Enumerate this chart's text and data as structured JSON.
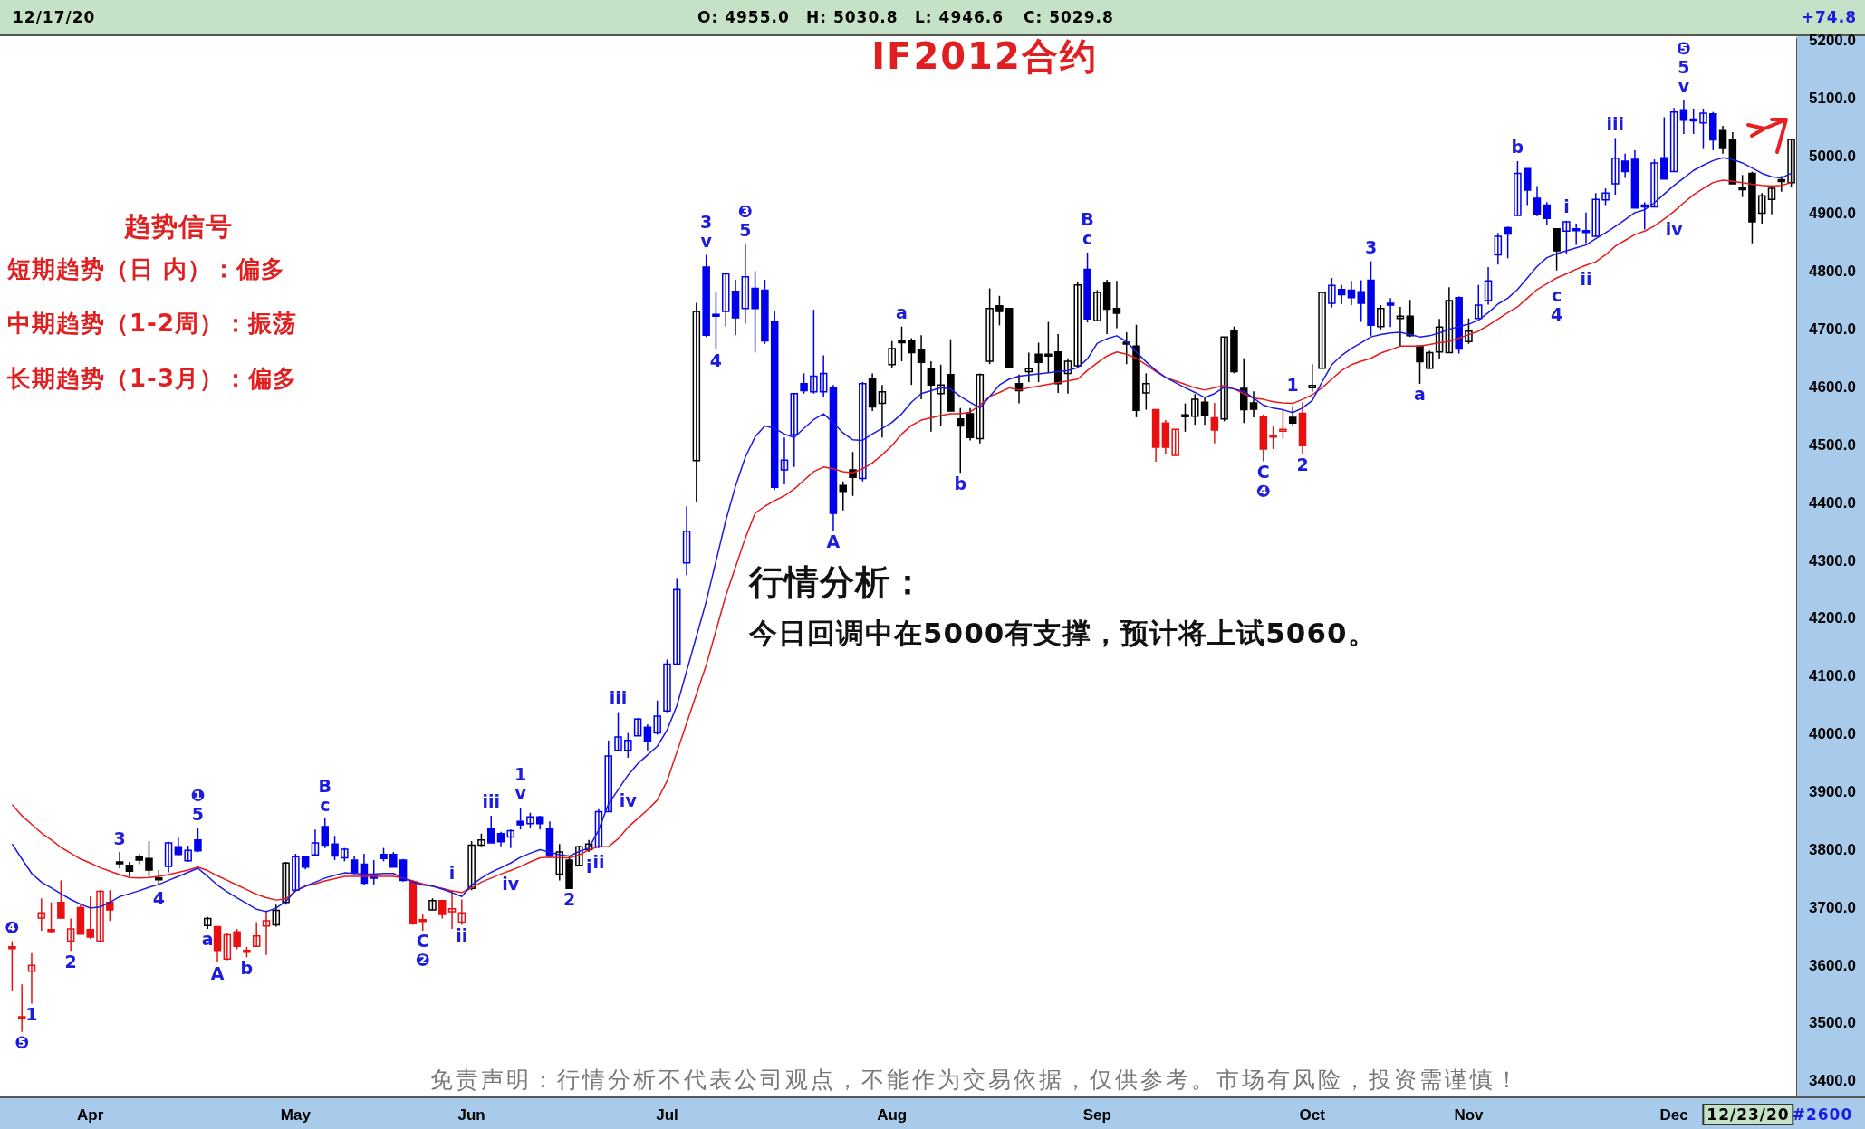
{
  "chart_data": {
    "type": "candlestick",
    "title": "IF2012合约",
    "categories": [
      null,
      null,
      null,
      null,
      null,
      null,
      null,
      null,
      "Apr",
      null,
      null,
      null,
      null,
      null,
      null,
      null,
      null,
      null,
      null,
      null,
      null,
      null,
      null,
      null,
      null,
      null,
      null,
      null,
      null,
      "May",
      null,
      null,
      null,
      null,
      null,
      null,
      null,
      null,
      null,
      null,
      null,
      null,
      null,
      null,
      null,
      null,
      null,
      "Jun",
      null,
      null,
      null,
      null,
      null,
      null,
      null,
      null,
      null,
      null,
      null,
      null,
      null,
      null,
      null,
      null,
      null,
      null,
      null,
      "Jul",
      null,
      null,
      null,
      null,
      null,
      null,
      null,
      null,
      null,
      null,
      null,
      null,
      null,
      null,
      null,
      null,
      null,
      null,
      null,
      null,
      null,
      null,
      "Aug",
      null,
      null,
      null,
      null,
      null,
      null,
      null,
      null,
      null,
      null,
      null,
      null,
      null,
      null,
      null,
      null,
      null,
      null,
      null,
      null,
      "Sep",
      null,
      null,
      null,
      null,
      null,
      null,
      null,
      null,
      null,
      null,
      null,
      null,
      null,
      null,
      null,
      null,
      null,
      null,
      null,
      null,
      null,
      "Oct",
      null,
      null,
      null,
      null,
      null,
      null,
      null,
      null,
      null,
      null,
      null,
      null,
      null,
      null,
      null,
      "Nov",
      null,
      null,
      null,
      null,
      null,
      null,
      null,
      null,
      null,
      null,
      null,
      null,
      null,
      null,
      null,
      null,
      null,
      null,
      null,
      null,
      "Dec",
      null,
      null,
      null,
      null,
      null,
      null,
      null,
      null,
      null,
      null,
      null,
      null
    ],
    "ylim": [
      3375,
      5205
    ],
    "yticks": [
      {
        "value": 3400,
        "label": "3400.0"
      },
      {
        "value": 3500,
        "label": "3500.0"
      },
      {
        "value": 3600,
        "label": "3600.0"
      },
      {
        "value": 3700,
        "label": "3700.0"
      },
      {
        "value": 3800,
        "label": "3800.0"
      },
      {
        "value": 3900,
        "label": "3900.0"
      },
      {
        "value": 4000,
        "label": "4000.0"
      },
      {
        "value": 4100,
        "label": "4100.0"
      },
      {
        "value": 4200,
        "label": "4200.0"
      },
      {
        "value": 4300,
        "label": "4300.0"
      },
      {
        "value": 4400,
        "label": "4400.0"
      },
      {
        "value": 4500,
        "label": "4500.0"
      },
      {
        "value": 4600,
        "label": "4600.0"
      },
      {
        "value": 4700,
        "label": "4700.0"
      },
      {
        "value": 4800,
        "label": "4800.0"
      },
      {
        "value": 4900,
        "label": "4900.0"
      },
      {
        "value": 5000,
        "label": "5000.0"
      },
      {
        "value": 5100,
        "label": "5100.0"
      },
      {
        "value": 5200,
        "label": "5200.0"
      }
    ],
    "annotations": [
      "12/17/20",
      "O: 4955.0",
      "H: 5030.8",
      "L: 4946.6",
      "C: 5029.8",
      "+74.8",
      "趋势信号",
      "短期趋势（日 内）：偏多",
      "中期趋势（1-2周）：振荡",
      "长期趋势（1-3月）：偏多",
      "行情分析：",
      "今日回调中在5000有支撑，预计将上试5060。",
      "免责声明：行情分析不代表公司观点，不能作为交易依据，仅供参考。市场有风险，投资需谨慎！",
      "12/23/20",
      "#2600"
    ],
    "series": [
      {
        "type": "line",
        "color": "#1a1ae6",
        "values": [
          3811,
          3785,
          3760,
          3745,
          3735,
          3725,
          3715,
          3707,
          3700,
          3702,
          3710,
          3720,
          3725,
          3730,
          3736,
          3741,
          3748,
          3755,
          3762,
          3769,
          3755,
          3740,
          3728,
          3718,
          3708,
          3698,
          3694,
          3700,
          3712,
          3730,
          3738,
          3745,
          3752,
          3757,
          3761,
          3760,
          3759,
          3759,
          3760,
          3760,
          3752,
          3745,
          3740,
          3738,
          3733,
          3727,
          3720,
          3740,
          3752,
          3762,
          3770,
          3778,
          3788,
          3795,
          3801,
          3797,
          3792,
          3790,
          3798,
          3804,
          3835,
          3880,
          3905,
          3930,
          3950,
          3965,
          3980,
          4008,
          4050,
          4110,
          4170,
          4230,
          4300,
          4370,
          4430,
          4480,
          4515,
          4534,
          4530,
          4520,
          4514,
          4530,
          4545,
          4555,
          4540,
          4522,
          4510,
          4509,
          4520,
          4530,
          4540,
          4555,
          4575,
          4590,
          4595,
          4600,
          4598,
          4585,
          4575,
          4565,
          4585,
          4605,
          4615,
          4620,
          4622,
          4624,
          4626,
          4628,
          4630,
          4635,
          4650,
          4677,
          4685,
          4690,
          4680,
          4662,
          4645,
          4630,
          4618,
          4609,
          4600,
          4592,
          4583,
          4590,
          4601,
          4598,
          4594,
          4582,
          4570,
          4565,
          4562,
          4557,
          4565,
          4578,
          4610,
          4640,
          4656,
          4668,
          4678,
          4688,
          4692,
          4695,
          4696,
          4692,
          4688,
          4690,
          4695,
          4701,
          4706,
          4710,
          4717,
          4730,
          4745,
          4755,
          4770,
          4790,
          4810,
          4825,
          4832,
          4837,
          4842,
          4847,
          4858,
          4868,
          4879,
          4891,
          4903,
          4908,
          4920,
          4935,
          4950,
          4963,
          4976,
          4985,
          4993,
          4998,
          4995,
          4989,
          4980,
          4971,
          4965,
          4963,
          4971
        ]
      },
      {
        "type": "line",
        "color": "#e61a1a",
        "values": [
          3879,
          3860,
          3845,
          3830,
          3818,
          3805,
          3795,
          3785,
          3778,
          3770,
          3764,
          3758,
          3753,
          3752,
          3753,
          3755,
          3758,
          3762,
          3766,
          3771,
          3765,
          3756,
          3748,
          3740,
          3732,
          3724,
          3718,
          3714,
          3716,
          3730,
          3738,
          3742,
          3747,
          3751,
          3755,
          3755,
          3755,
          3755,
          3755,
          3755,
          3752,
          3747,
          3742,
          3738,
          3734,
          3730,
          3727,
          3735,
          3745,
          3752,
          3759,
          3765,
          3772,
          3780,
          3787,
          3788,
          3787,
          3787,
          3792,
          3801,
          3806,
          3806,
          3820,
          3840,
          3855,
          3870,
          3887,
          3920,
          3970,
          4020,
          4070,
          4120,
          4180,
          4240,
          4290,
          4340,
          4383,
          4395,
          4405,
          4413,
          4425,
          4440,
          4455,
          4463,
          4460,
          4455,
          4453,
          4460,
          4470,
          4484,
          4500,
          4520,
          4535,
          4544,
          4548,
          4552,
          4555,
          4555,
          4558,
          4570,
          4585,
          4592,
          4600,
          4596,
          4600,
          4603,
          4606,
          4609,
          4612,
          4615,
          4630,
          4643,
          4655,
          4662,
          4658,
          4651,
          4640,
          4628,
          4618,
          4612,
          4606,
          4600,
          4596,
          4600,
          4604,
          4598,
          4590,
          4582,
          4580,
          4576,
          4574,
          4573,
          4580,
          4588,
          4600,
          4615,
          4630,
          4640,
          4646,
          4651,
          4660,
          4666,
          4672,
          4672,
          4672,
          4675,
          4678,
          4680,
          4686,
          4692,
          4698,
          4708,
          4719,
          4730,
          4740,
          4755,
          4770,
          4780,
          4790,
          4797,
          4805,
          4812,
          4818,
          4830,
          4845,
          4855,
          4865,
          4871,
          4880,
          4892,
          4905,
          4920,
          4934,
          4945,
          4955,
          4959,
          4957,
          4955,
          4952,
          4950,
          4949,
          4950,
          4955
        ]
      },
      {
        "type": "candlestick",
        "ohlc": [
          [
            3633,
            3643,
            3556,
            3630
          ],
          [
            3512,
            3568,
            3486,
            3510
          ],
          [
            3591,
            3622,
            3535,
            3601
          ],
          [
            3683,
            3717,
            3661,
            3692
          ],
          [
            3663,
            3710,
            3657,
            3663
          ],
          [
            3710,
            3748,
            3682,
            3683
          ],
          [
            3643,
            3682,
            3626,
            3664
          ],
          [
            3701,
            3706,
            3655,
            3655
          ],
          [
            3663,
            3720,
            3647,
            3650
          ],
          [
            3643,
            3731,
            3643,
            3729
          ],
          [
            3710,
            3731,
            3678,
            3697
          ],
          [
            3780,
            3797,
            3769,
            3780
          ],
          [
            3774,
            3780,
            3755,
            3764
          ],
          [
            3789,
            3794,
            3776,
            3783
          ],
          [
            3786,
            3816,
            3755,
            3766
          ],
          [
            3752,
            3766,
            3741,
            3752
          ],
          [
            3772,
            3815,
            3762,
            3813
          ],
          [
            3806,
            3823,
            3790,
            3793
          ],
          [
            3782,
            3808,
            3780,
            3800
          ],
          [
            3818,
            3839,
            3797,
            3799
          ],
          [
            3670,
            3685,
            3664,
            3682
          ],
          [
            3668,
            3668,
            3606,
            3627
          ],
          [
            3612,
            3657,
            3610,
            3654
          ],
          [
            3659,
            3664,
            3629,
            3634
          ],
          [
            3627,
            3633,
            3615,
            3627
          ],
          [
            3634,
            3676,
            3633,
            3652
          ],
          [
            3669,
            3696,
            3619,
            3678
          ],
          [
            3671,
            3706,
            3668,
            3696
          ],
          [
            3710,
            3780,
            3706,
            3778
          ],
          [
            3731,
            3794,
            3731,
            3789
          ],
          [
            3788,
            3790,
            3767,
            3771
          ],
          [
            3792,
            3836,
            3790,
            3813
          ],
          [
            3841,
            3855,
            3804,
            3809
          ],
          [
            3811,
            3825,
            3783,
            3790
          ],
          [
            3787,
            3804,
            3781,
            3802
          ],
          [
            3783,
            3790,
            3759,
            3762
          ],
          [
            3776,
            3794,
            3741,
            3743
          ],
          [
            3755,
            3783,
            3741,
            3755
          ],
          [
            3793,
            3804,
            3781,
            3786
          ],
          [
            3793,
            3797,
            3771,
            3771
          ],
          [
            3783,
            3785,
            3746,
            3748
          ],
          [
            3745,
            3748,
            3671,
            3673
          ],
          [
            3680,
            3689,
            3661,
            3680
          ],
          [
            3697,
            3717,
            3697,
            3713
          ],
          [
            3713,
            3713,
            3682,
            3689
          ],
          [
            3694,
            3731,
            3664,
            3699
          ],
          [
            3676,
            3715,
            3671,
            3692
          ],
          [
            3734,
            3816,
            3731,
            3809
          ],
          [
            3809,
            3829,
            3807,
            3818
          ],
          [
            3837,
            3860,
            3813,
            3813
          ],
          [
            3829,
            3832,
            3807,
            3815
          ],
          [
            3823,
            3836,
            3804,
            3834
          ],
          [
            3850,
            3874,
            3836,
            3844
          ],
          [
            3846,
            3865,
            3839,
            3858
          ],
          [
            3858,
            3860,
            3836,
            3846
          ],
          [
            3837,
            3850,
            3787,
            3790
          ],
          [
            3759,
            3811,
            3748,
            3797
          ],
          [
            3783,
            3790,
            3734,
            3734
          ],
          [
            3774,
            3808,
            3773,
            3806
          ],
          [
            3801,
            3818,
            3797,
            3811
          ],
          [
            3806,
            3871,
            3804,
            3867
          ],
          [
            3867,
            3990,
            3867,
            3963
          ],
          [
            3973,
            4039,
            3973,
            3996
          ],
          [
            3973,
            4003,
            3960,
            3990
          ],
          [
            3998,
            4029,
            3998,
            4027
          ],
          [
            4013,
            4018,
            3973,
            3988
          ],
          [
            4003,
            4059,
            4000,
            4032
          ],
          [
            4041,
            4130,
            4039,
            4122
          ],
          [
            4122,
            4271,
            4120,
            4251
          ],
          [
            4297,
            4395,
            4276,
            4352
          ],
          [
            4474,
            4747,
            4403,
            4732
          ],
          [
            4809,
            4830,
            4688,
            4691
          ],
          [
            4727,
            4767,
            4666,
            4724
          ],
          [
            4732,
            4799,
            4706,
            4797
          ],
          [
            4767,
            4787,
            4691,
            4721
          ],
          [
            4737,
            4848,
            4711,
            4792
          ],
          [
            4772,
            4802,
            4661,
            4737
          ],
          [
            4769,
            4787,
            4676,
            4681
          ],
          [
            4714,
            4732,
            4423,
            4428
          ],
          [
            4458,
            4514,
            4433,
            4475
          ],
          [
            4519,
            4590,
            4463,
            4590
          ],
          [
            4607,
            4625,
            4590,
            4595
          ],
          [
            4593,
            4735,
            4590,
            4620
          ],
          [
            4593,
            4656,
            4585,
            4625
          ],
          [
            4600,
            4605,
            4352,
            4383
          ],
          [
            4431,
            4438,
            4388,
            4421
          ],
          [
            4458,
            4489,
            4413,
            4445
          ],
          [
            4443,
            4610,
            4438,
            4607
          ],
          [
            4615,
            4625,
            4560,
            4567
          ],
          [
            4573,
            4605,
            4514,
            4593
          ],
          [
            4640,
            4681,
            4635,
            4668
          ],
          [
            4681,
            4706,
            4646,
            4681
          ],
          [
            4681,
            4686,
            4605,
            4661
          ],
          [
            4666,
            4691,
            4580,
            4644
          ],
          [
            4633,
            4646,
            4524,
            4605
          ],
          [
            4590,
            4640,
            4534,
            4605
          ],
          [
            4623,
            4684,
            4560,
            4560
          ],
          [
            4546,
            4565,
            4453,
            4534
          ],
          [
            4555,
            4565,
            4509,
            4514
          ],
          [
            4512,
            4625,
            4504,
            4623
          ],
          [
            4646,
            4772,
            4641,
            4737
          ],
          [
            4742,
            4759,
            4708,
            4732
          ],
          [
            4737,
            4737,
            4635,
            4635
          ],
          [
            4607,
            4623,
            4573,
            4595
          ],
          [
            4628,
            4661,
            4610,
            4633
          ],
          [
            4658,
            4678,
            4610,
            4644
          ],
          [
            4658,
            4714,
            4627,
            4658
          ],
          [
            4662,
            4693,
            4591,
            4607
          ],
          [
            4625,
            4651,
            4590,
            4646
          ],
          [
            4638,
            4783,
            4635,
            4778
          ],
          [
            4805,
            4834,
            4713,
            4719
          ],
          [
            4716,
            4769,
            4715,
            4765
          ],
          [
            4782,
            4787,
            4693,
            4736
          ],
          [
            4737,
            4785,
            4703,
            4729
          ],
          [
            4679,
            4696,
            4641,
            4679
          ],
          [
            4672,
            4709,
            4549,
            4561
          ],
          [
            4591,
            4625,
            4562,
            4607
          ],
          [
            4562,
            4563,
            4472,
            4497
          ],
          [
            4539,
            4544,
            4485,
            4497
          ],
          [
            4483,
            4528,
            4483,
            4528
          ],
          [
            4553,
            4573,
            4524,
            4553
          ],
          [
            4551,
            4589,
            4536,
            4580
          ],
          [
            4575,
            4583,
            4536,
            4553
          ],
          [
            4548,
            4574,
            4504,
            4527
          ],
          [
            4546,
            4688,
            4542,
            4688
          ],
          [
            4699,
            4706,
            4625,
            4628
          ],
          [
            4599,
            4651,
            4539,
            4562
          ],
          [
            4574,
            4594,
            4549,
            4563
          ],
          [
            4551,
            4554,
            4473,
            4494
          ],
          [
            4518,
            4533,
            4494,
            4518
          ],
          [
            4525,
            4562,
            4512,
            4528
          ],
          [
            4549,
            4568,
            4535,
            4539
          ],
          [
            4556,
            4575,
            4486,
            4500
          ],
          [
            4600,
            4641,
            4593,
            4604
          ],
          [
            4634,
            4766,
            4633,
            4765
          ],
          [
            4746,
            4790,
            4739,
            4777
          ],
          [
            4770,
            4778,
            4745,
            4761
          ],
          [
            4769,
            4785,
            4743,
            4756
          ],
          [
            4766,
            4786,
            4714,
            4746
          ],
          [
            4786,
            4819,
            4690,
            4708
          ],
          [
            4706,
            4743,
            4701,
            4737
          ],
          [
            4746,
            4755,
            4705,
            4746
          ],
          [
            4720,
            4740,
            4672,
            4724
          ],
          [
            4724,
            4752,
            4688,
            4690
          ],
          [
            4672,
            4673,
            4607,
            4645
          ],
          [
            4634,
            4664,
            4633,
            4661
          ],
          [
            4662,
            4719,
            4649,
            4705
          ],
          [
            4661,
            4774,
            4661,
            4751
          ],
          [
            4756,
            4758,
            4659,
            4667
          ],
          [
            4680,
            4720,
            4676,
            4698
          ],
          [
            4720,
            4778,
            4720,
            4743
          ],
          [
            4751,
            4809,
            4744,
            4785
          ],
          [
            4830,
            4868,
            4813,
            4862
          ],
          [
            4877,
            4879,
            4824,
            4866
          ],
          [
            4898,
            4992,
            4898,
            4971
          ],
          [
            4979,
            4979,
            4916,
            4942
          ],
          [
            4928,
            4949,
            4897,
            4900
          ],
          [
            4916,
            4921,
            4882,
            4893
          ],
          [
            4875,
            4876,
            4803,
            4837
          ],
          [
            4871,
            4889,
            4832,
            4887
          ],
          [
            4875,
            4884,
            4847,
            4875
          ],
          [
            4872,
            4903,
            4850,
            4872
          ],
          [
            4862,
            4937,
            4862,
            4926
          ],
          [
            4925,
            4945,
            4916,
            4937
          ],
          [
            4953,
            5032,
            4934,
            4997
          ],
          [
            4992,
            5005,
            4963,
            4974
          ],
          [
            4995,
            5011,
            4911,
            4911
          ],
          [
            4916,
            4921,
            4874,
            4916
          ],
          [
            4913,
            4995,
            4913,
            4989
          ],
          [
            4998,
            5068,
            4961,
            4961
          ],
          [
            4974,
            5084,
            4974,
            5077
          ],
          [
            5081,
            5098,
            5039,
            5063
          ],
          [
            5065,
            5083,
            5039,
            5065
          ],
          [
            5058,
            5083,
            5013,
            5075
          ],
          [
            5074,
            5077,
            5011,
            5029
          ],
          [
            5045,
            5053,
            5005,
            5014
          ],
          [
            5030,
            5042,
            4953,
            4953
          ],
          [
            4946,
            4968,
            4930,
            4946
          ],
          [
            4971,
            4974,
            4850,
            4887
          ],
          [
            4902,
            4937,
            4884,
            4932
          ],
          [
            4926,
            4950,
            4900,
            4945
          ],
          [
            4960,
            4966,
            4939,
            4959
          ],
          [
            4955.0,
            5030.8,
            4946.6,
            5029.8
          ]
        ],
        "colors": [
          "#e81010",
          "#e81010",
          "#e81010",
          "#e81010",
          "#e81010",
          "#e81010",
          "#e81010",
          "#e81010",
          "#e81010",
          "#e81010",
          "#e81010",
          "#000000",
          "#000000",
          "#000000",
          "#000000",
          "#000000",
          "#0000ee",
          "#0000ee",
          "#0000ee",
          "#0000ee",
          "#000000",
          "#e81010",
          "#e81010",
          "#e81010",
          "#e81010",
          "#e81010",
          "#e81010",
          "#000000",
          "#000000",
          "#0000ee",
          "#0000ee",
          "#0000ee",
          "#0000ee",
          "#0000ee",
          "#0000ee",
          "#0000ee",
          "#0000ee",
          "#0000ee",
          "#0000ee",
          "#0000ee",
          "#0000ee",
          "#e81010",
          "#e81010",
          "#000000",
          "#e81010",
          "#e81010",
          "#e81010",
          "#000000",
          "#000000",
          "#0000ee",
          "#0000ee",
          "#0000ee",
          "#0000ee",
          "#0000ee",
          "#0000ee",
          "#0000ee",
          "#000000",
          "#000000",
          "#000000",
          "#000000",
          "#0000ee",
          "#0000ee",
          "#0000ee",
          "#0000ee",
          "#0000ee",
          "#0000ee",
          "#0000ee",
          "#0000ee",
          "#0000ee",
          "#0000ee",
          "#000000",
          "#0000ee",
          "#0000ee",
          "#0000ee",
          "#0000ee",
          "#0000ee",
          "#0000ee",
          "#0000ee",
          "#0000ee",
          "#0000ee",
          "#0000ee",
          "#0000ee",
          "#0000ee",
          "#0000ee",
          "#0000ee",
          "#000000",
          "#000000",
          "#0000ee",
          "#000000",
          "#000000",
          "#000000",
          "#000000",
          "#000000",
          "#000000",
          "#000000",
          "#000000",
          "#000000",
          "#000000",
          "#000000",
          "#000000",
          "#000000",
          "#000000",
          "#000000",
          "#000000",
          "#000000",
          "#000000",
          "#000000",
          "#000000",
          "#000000",
          "#000000",
          "#0000ee",
          "#000000",
          "#000000",
          "#000000",
          "#000000",
          "#000000",
          "#000000",
          "#e81010",
          "#e81010",
          "#e81010",
          "#000000",
          "#000000",
          "#000000",
          "#e81010",
          "#000000",
          "#000000",
          "#000000",
          "#000000",
          "#e81010",
          "#e81010",
          "#e81010",
          "#000000",
          "#e81010",
          "#000000",
          "#000000",
          "#0000ee",
          "#0000ee",
          "#0000ee",
          "#0000ee",
          "#0000ee",
          "#000000",
          "#0000ee",
          "#000000",
          "#000000",
          "#000000",
          "#000000",
          "#000000",
          "#000000",
          "#0000ee",
          "#000000",
          "#0000ee",
          "#0000ee",
          "#0000ee",
          "#0000ee",
          "#0000ee",
          "#0000ee",
          "#0000ee",
          "#0000ee",
          "#000000",
          "#0000ee",
          "#0000ee",
          "#0000ee",
          "#0000ee",
          "#0000ee",
          "#0000ee",
          "#0000ee",
          "#0000ee",
          "#0000ee",
          "#0000ee",
          "#0000ee",
          "#0000ee",
          "#0000ee",
          "#0000ee",
          "#0000ee",
          "#0000ee",
          "#000000",
          "#000000",
          "#000000",
          "#000000",
          "#000000",
          "#000000",
          "#000000",
          "#000000"
        ],
        "value_labels": [
          "❹",
          "❺",
          "1",
          null,
          null,
          null,
          "2",
          null,
          null,
          null,
          null,
          "3",
          null,
          null,
          null,
          "4",
          null,
          null,
          null,
          "❶\n5",
          "a",
          "A",
          null,
          null,
          "b",
          null,
          null,
          null,
          null,
          null,
          null,
          null,
          "B\nc",
          null,
          null,
          null,
          null,
          null,
          null,
          null,
          null,
          null,
          "C\n❷",
          null,
          null,
          "i",
          "ii",
          null,
          null,
          "iii",
          null,
          "iv",
          "1\nv",
          null,
          null,
          null,
          null,
          "2",
          null,
          "i",
          "ii",
          null,
          "iii",
          "iv",
          null,
          null,
          null,
          null,
          null,
          null,
          null,
          "3\nv",
          "4",
          null,
          null,
          "❸\n5",
          null,
          null,
          null,
          null,
          null,
          null,
          null,
          null,
          "A",
          null,
          null,
          null,
          null,
          null,
          null,
          "a",
          null,
          null,
          null,
          null,
          null,
          "b",
          null,
          null,
          null,
          null,
          null,
          null,
          null,
          null,
          null,
          null,
          null,
          null,
          "B\nc",
          null,
          null,
          null,
          null,
          null,
          null,
          null,
          null,
          null,
          null,
          null,
          null,
          null,
          null,
          null,
          null,
          null,
          "C\n❹",
          null,
          null,
          "1",
          "2",
          null,
          null,
          null,
          null,
          null,
          null,
          "3",
          null,
          null,
          null,
          null,
          "a",
          null,
          null,
          null,
          null,
          null,
          null,
          null,
          null,
          null,
          "b",
          null,
          null,
          null,
          "c\n4",
          "i",
          null,
          "ii",
          null,
          null,
          "iii",
          null,
          null,
          null,
          null,
          null,
          "iv",
          "❺\n5\nv",
          null,
          null,
          null,
          null,
          null,
          null,
          null,
          null,
          null,
          null,
          null
        ]
      }
    ]
  }
}
